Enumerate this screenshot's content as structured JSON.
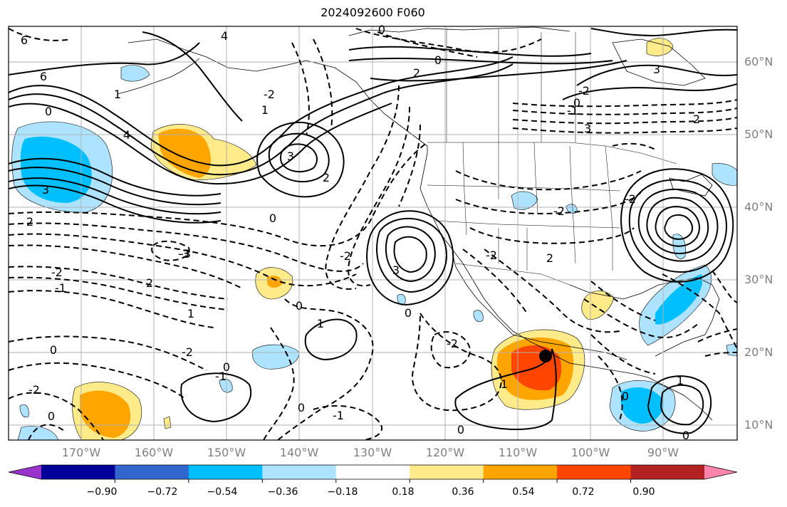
{
  "title": "2024092600 F060",
  "lat_labels": [
    "60°N",
    "50°N",
    "40°N",
    "30°N",
    "20°N",
    "10°N"
  ],
  "lon_labels": [
    "170°W",
    "160°W",
    "150°W",
    "140°W",
    "130°W",
    "120°W",
    "110°W",
    "100°W",
    "90°W"
  ],
  "colorbar": {
    "colors": [
      "#9933cc",
      "#000099",
      "#3366cc",
      "#00bfff",
      "#aee3ff",
      "#ffffff",
      "#ffeb8a",
      "#ffa500",
      "#ff4500",
      "#b22222",
      "#ff85ad"
    ],
    "tick_labels": [
      "−0.90",
      "−0.72",
      "−0.54",
      "−0.36",
      "−0.18",
      "0.18",
      "0.36",
      "0.54",
      "0.72",
      "0.90"
    ]
  },
  "contour_labels": [
    {
      "text": "6"
    },
    {
      "text": "6"
    },
    {
      "text": "4"
    },
    {
      "text": "0"
    },
    {
      "text": "1"
    },
    {
      "text": "2"
    },
    {
      "text": "3"
    },
    {
      "text": "2"
    },
    {
      "text": "0"
    },
    {
      "text": "0"
    },
    {
      "text": "2"
    },
    {
      "text": "3"
    },
    {
      "text": "-2"
    },
    {
      "text": "1"
    },
    {
      "text": "0"
    },
    {
      "text": "4"
    },
    {
      "text": "3"
    },
    {
      "text": "3"
    },
    {
      "text": "-3"
    },
    {
      "text": "2"
    },
    {
      "text": "-2"
    },
    {
      "text": "-1"
    },
    {
      "text": "0"
    },
    {
      "text": "0"
    },
    {
      "text": "-3"
    },
    {
      "text": "-2"
    },
    {
      "text": "2"
    },
    {
      "text": "-1"
    },
    {
      "text": "-2"
    },
    {
      "text": "3"
    },
    {
      "text": "0"
    },
    {
      "text": "1"
    },
    {
      "text": "0"
    },
    {
      "text": "1"
    },
    {
      "text": "-2"
    },
    {
      "text": "-2"
    },
    {
      "text": "0"
    },
    {
      "text": "-2"
    },
    {
      "text": "-1"
    },
    {
      "text": "0"
    },
    {
      "text": "0"
    },
    {
      "text": "0"
    },
    {
      "text": "1"
    },
    {
      "text": "-1"
    },
    {
      "text": "-2"
    },
    {
      "text": "-2"
    },
    {
      "text": "0"
    },
    {
      "text": "2"
    },
    {
      "text": "-2"
    },
    {
      "text": "0"
    },
    {
      "text": "1"
    }
  ],
  "marker": {
    "description": "storm center"
  }
}
